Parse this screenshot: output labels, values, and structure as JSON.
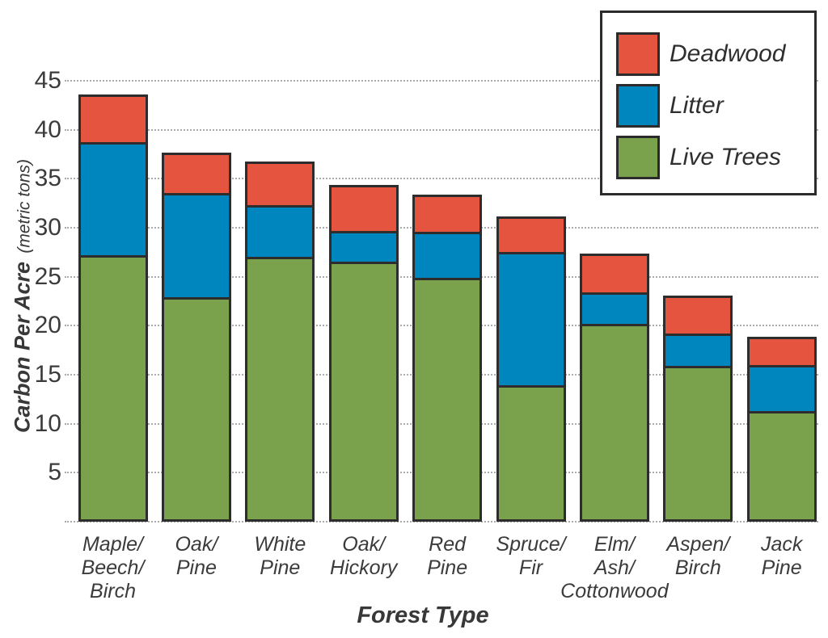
{
  "chart_data": {
    "type": "bar",
    "stacked": true,
    "title": "",
    "xlabel": "Forest Type",
    "ylabel": "Carbon Per Acre",
    "ylabel_unit": "(metric tons)",
    "ylim": [
      0,
      45
    ],
    "ytick_step": 5,
    "yticks": [
      5,
      10,
      15,
      20,
      25,
      30,
      35,
      40,
      45
    ],
    "grid": "horizontal-dotted",
    "legend_position": "top-right",
    "categories": [
      "Maple/Beech/Birch",
      "Oak/Pine",
      "White Pine",
      "Oak/Hickory",
      "Red Pine",
      "Spruce/Fir",
      "Elm/Ash/Cottonwood",
      "Aspen/Birch",
      "Jack Pine"
    ],
    "category_label_lines": [
      [
        "Maple/",
        "Beech/",
        "Birch"
      ],
      [
        "Oak/",
        "Pine"
      ],
      [
        "White",
        "Pine"
      ],
      [
        "Oak/",
        "Hickory"
      ],
      [
        "Red",
        "Pine"
      ],
      [
        "Spruce/",
        "Fir"
      ],
      [
        "Elm/",
        "Ash/",
        "Cottonwood"
      ],
      [
        "Aspen/",
        "Birch"
      ],
      [
        "Jack",
        "Pine"
      ]
    ],
    "series": [
      {
        "name": "Live Trees",
        "color": "#7aa24c",
        "values": [
          27.3,
          23.0,
          27.1,
          26.6,
          25.0,
          14.0,
          20.3,
          16.0,
          11.4
        ]
      },
      {
        "name": "Litter",
        "color": "#0086be",
        "values": [
          11.5,
          10.6,
          5.3,
          3.2,
          4.7,
          13.6,
          3.2,
          3.3,
          4.7
        ]
      },
      {
        "name": "Deadwood",
        "color": "#e4543f",
        "values": [
          4.8,
          4.1,
          4.4,
          4.6,
          3.7,
          3.6,
          3.9,
          3.8,
          2.8
        ]
      }
    ],
    "totals": [
      43.6,
      37.7,
      36.8,
      34.4,
      33.4,
      31.2,
      27.4,
      23.1,
      18.9
    ],
    "legend": [
      {
        "label": "Deadwood",
        "color": "#e4543f"
      },
      {
        "label": "Litter",
        "color": "#0086be"
      },
      {
        "label": "Live Trees",
        "color": "#7aa24c"
      }
    ]
  },
  "colors": {
    "deadwood": "#e4543f",
    "litter": "#0086be",
    "live_trees": "#7aa24c",
    "bar_border": "#2d2d2d",
    "gridline": "#ababab",
    "text": "#3b3b3b"
  }
}
